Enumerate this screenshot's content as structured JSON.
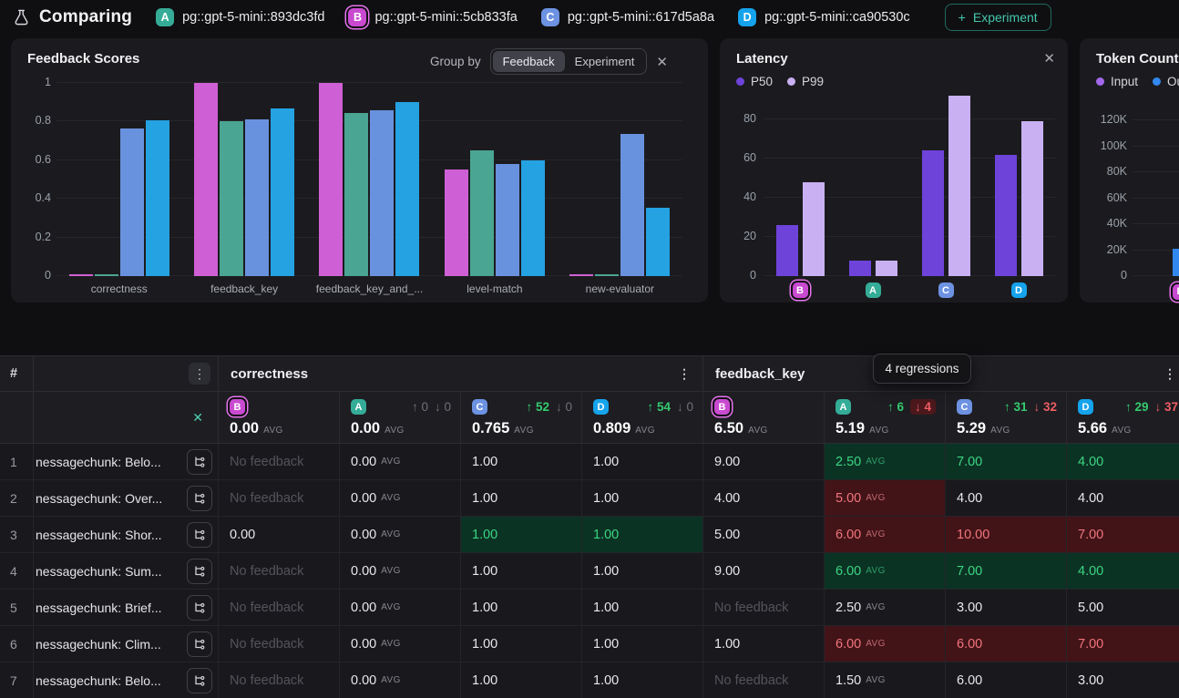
{
  "topbar": {
    "title": "Comparing",
    "add_button_plus": "+",
    "add_button_label": "Experiment",
    "experiments": [
      {
        "letter": "A",
        "name": "pg::gpt-5-mini::893dc3fd"
      },
      {
        "letter": "B",
        "name": "pg::gpt-5-mini::5cb833fa"
      },
      {
        "letter": "C",
        "name": "pg::gpt-5-mini::617d5a8a"
      },
      {
        "letter": "D",
        "name": "pg::gpt-5-mini::ca90530c"
      }
    ]
  },
  "experiment_colors": {
    "A": "#35ac97",
    "B": "#c94ad1",
    "C": "#6d92e2",
    "D": "#15a3ec"
  },
  "baseline_experiment": "B",
  "chart_data": [
    {
      "type": "bar",
      "title": "Feedback Scores",
      "group_by": {
        "label": "Group by",
        "options": [
          "Feedback",
          "Experiment"
        ],
        "selected": "Feedback"
      },
      "categories": [
        "correctness",
        "feedback_key",
        "feedback_key_and_...",
        "level-match",
        "new-evaluator"
      ],
      "series": [
        {
          "name": "B",
          "color": "#cf5fd4",
          "values": [
            0.005,
            1.0,
            1.0,
            0.55,
            0.005
          ]
        },
        {
          "name": "A",
          "color": "#4ba593",
          "values": [
            0.005,
            0.8,
            0.845,
            0.65,
            0.005
          ]
        },
        {
          "name": "C",
          "color": "#6992de",
          "values": [
            0.765,
            0.81,
            0.86,
            0.58,
            0.735
          ]
        },
        {
          "name": "D",
          "color": "#24a2e2",
          "values": [
            0.809,
            0.87,
            0.9,
            0.6,
            0.355
          ]
        }
      ],
      "yticks": [
        0,
        0.2,
        0.4,
        0.6,
        0.8,
        1
      ],
      "ytick_labels": [
        "0",
        "0.2",
        "0.4",
        "0.6",
        "0.8",
        "1"
      ],
      "ylim": [
        0,
        1
      ],
      "grid": true,
      "legend_position": "none"
    },
    {
      "type": "bar",
      "title": "Latency",
      "categories": [
        "B",
        "A",
        "C",
        "D"
      ],
      "series": [
        {
          "name": "P50",
          "color": "#6e43da",
          "values": [
            26,
            8,
            64,
            62
          ]
        },
        {
          "name": "P99",
          "color": "#c9b0f2",
          "values": [
            48,
            8,
            92,
            79
          ]
        }
      ],
      "yticks": [
        0,
        20,
        40,
        60,
        80
      ],
      "ytick_labels": [
        "0",
        "20",
        "40",
        "60",
        "80"
      ],
      "ylim": [
        0,
        93
      ],
      "grid": true,
      "legend_position": "top-left"
    },
    {
      "type": "bar",
      "title": "Token Count",
      "categories": [
        "B"
      ],
      "series": [
        {
          "name": "Input",
          "color": "#a368ea",
          "values": [
            null
          ]
        },
        {
          "name": "Output",
          "color": "#3188ee",
          "values": [
            21000
          ]
        }
      ],
      "yticks": [
        0,
        20000,
        40000,
        60000,
        80000,
        100000,
        120000
      ],
      "ytick_labels": [
        "0",
        "20K",
        "40K",
        "60K",
        "80K",
        "100K",
        "120K"
      ],
      "ylim": [
        0,
        128000
      ],
      "grid": true,
      "legend_position": "top-left",
      "note": "panel clipped at right edge of screen"
    }
  ],
  "table": {
    "hash_header": "#",
    "groups": [
      {
        "label": "correctness"
      },
      {
        "label": "feedback_key"
      }
    ],
    "tooltip": "4 regressions",
    "avg_label": "AVG",
    "columns": [
      {
        "exp": "B",
        "avg": "0.00"
      },
      {
        "exp": "A",
        "avg": "0.00",
        "up": "0",
        "down": "0",
        "up_muted": true,
        "down_muted": true
      },
      {
        "exp": "C",
        "avg": "0.765",
        "up": "52",
        "down": "0",
        "down_muted": true
      },
      {
        "exp": "D",
        "avg": "0.809",
        "up": "54",
        "down": "0",
        "down_muted": true
      },
      {
        "exp": "B",
        "avg": "6.50"
      },
      {
        "exp": "A",
        "avg": "5.19",
        "up": "6",
        "down": "4",
        "down_chip": true
      },
      {
        "exp": "C",
        "avg": "5.29",
        "up": "31",
        "down": "32"
      },
      {
        "exp": "D",
        "avg": "5.66",
        "up": "29",
        "down": "37"
      }
    ],
    "no_feedback_text": "No feedback",
    "rows": [
      {
        "num": "1",
        "input": "nessagechunk: Belo...",
        "cells": [
          {
            "t": "No feedback",
            "muted": true
          },
          {
            "t": "0.00",
            "avg": true
          },
          {
            "t": "1.00"
          },
          {
            "t": "1.00"
          },
          {
            "t": "9.00"
          },
          {
            "t": "2.50",
            "avg": true,
            "state": "good"
          },
          {
            "t": "7.00",
            "state": "good"
          },
          {
            "t": "4.00",
            "state": "good"
          }
        ]
      },
      {
        "num": "2",
        "input": "nessagechunk: Over...",
        "cells": [
          {
            "t": "No feedback",
            "muted": true
          },
          {
            "t": "0.00",
            "avg": true
          },
          {
            "t": "1.00"
          },
          {
            "t": "1.00"
          },
          {
            "t": "4.00"
          },
          {
            "t": "5.00",
            "avg": true,
            "state": "bad"
          },
          {
            "t": "4.00"
          },
          {
            "t": "4.00"
          }
        ]
      },
      {
        "num": "3",
        "input": "nessagechunk: Shor...",
        "cells": [
          {
            "t": "0.00"
          },
          {
            "t": "0.00",
            "avg": true
          },
          {
            "t": "1.00",
            "state": "good"
          },
          {
            "t": "1.00",
            "state": "good"
          },
          {
            "t": "5.00"
          },
          {
            "t": "6.00",
            "avg": true,
            "state": "bad"
          },
          {
            "t": "10.00",
            "state": "bad"
          },
          {
            "t": "7.00",
            "state": "bad"
          }
        ]
      },
      {
        "num": "4",
        "input": "nessagechunk: Sum...",
        "cells": [
          {
            "t": "No feedback",
            "muted": true
          },
          {
            "t": "0.00",
            "avg": true
          },
          {
            "t": "1.00"
          },
          {
            "t": "1.00"
          },
          {
            "t": "9.00"
          },
          {
            "t": "6.00",
            "avg": true,
            "state": "good"
          },
          {
            "t": "7.00",
            "state": "good"
          },
          {
            "t": "4.00",
            "state": "good"
          }
        ]
      },
      {
        "num": "5",
        "input": "nessagechunk: Brief...",
        "cells": [
          {
            "t": "No feedback",
            "muted": true
          },
          {
            "t": "0.00",
            "avg": true
          },
          {
            "t": "1.00"
          },
          {
            "t": "1.00"
          },
          {
            "t": "No feedback",
            "muted": true
          },
          {
            "t": "2.50",
            "avg": true
          },
          {
            "t": "3.00"
          },
          {
            "t": "5.00"
          }
        ]
      },
      {
        "num": "6",
        "input": "nessagechunk: Clim...",
        "cells": [
          {
            "t": "No feedback",
            "muted": true
          },
          {
            "t": "0.00",
            "avg": true
          },
          {
            "t": "1.00"
          },
          {
            "t": "1.00"
          },
          {
            "t": "1.00"
          },
          {
            "t": "6.00",
            "avg": true,
            "state": "bad"
          },
          {
            "t": "6.00",
            "state": "bad"
          },
          {
            "t": "7.00",
            "state": "bad"
          }
        ]
      },
      {
        "num": "7",
        "input": "nessagechunk: Belo...",
        "cells": [
          {
            "t": "No feedback",
            "muted": true
          },
          {
            "t": "0.00",
            "avg": true
          },
          {
            "t": "1.00"
          },
          {
            "t": "1.00"
          },
          {
            "t": "No feedback",
            "muted": true
          },
          {
            "t": "1.50",
            "avg": true
          },
          {
            "t": "6.00"
          },
          {
            "t": "3.00"
          }
        ]
      }
    ]
  }
}
